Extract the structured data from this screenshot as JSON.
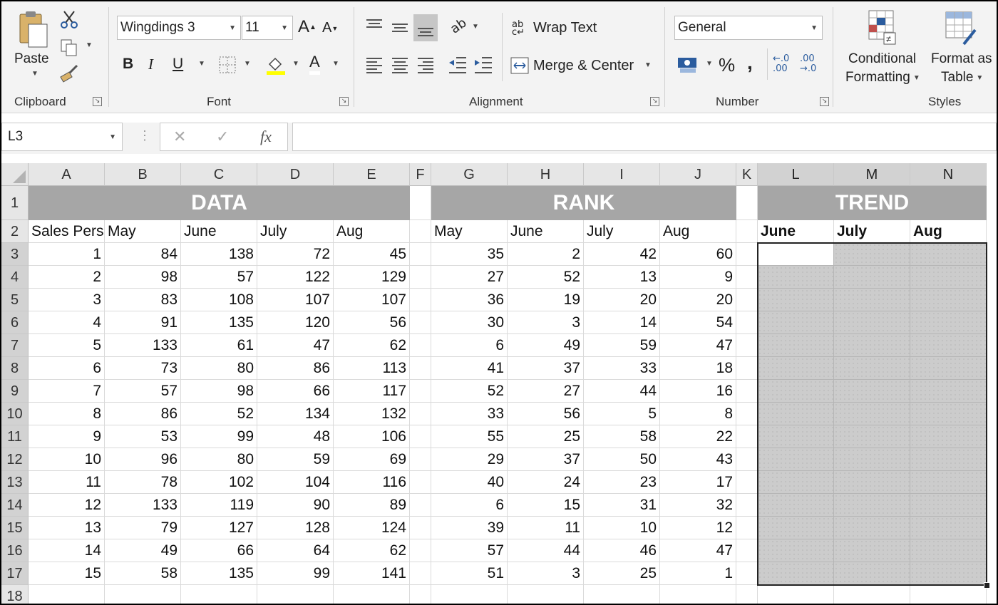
{
  "ribbon": {
    "clipboard": {
      "label": "Clipboard",
      "paste": "Paste"
    },
    "font": {
      "label": "Font",
      "font_name": "Wingdings 3",
      "font_size": "11",
      "bold": "B",
      "italic": "I",
      "underline": "U",
      "grow": "A",
      "shrink": "A",
      "font_color": "A"
    },
    "alignment": {
      "label": "Alignment",
      "wrap_text": "Wrap Text",
      "merge_center": "Merge & Center",
      "orientation_glyph": "ab"
    },
    "number": {
      "label": "Number",
      "format": "General",
      "percent": "%",
      "comma": ",",
      "inc_decimal": "←.0\n.00",
      "dec_decimal": ".00\n→.0"
    },
    "styles": {
      "label": "Styles",
      "conditional_line1": "Conditional",
      "conditional_line2": "Formatting",
      "format_table_line1": "Format as",
      "format_table_line2": "Table"
    }
  },
  "formula_bar": {
    "name_box": "L3",
    "cancel": "✕",
    "enter": "✓",
    "fx": "fx",
    "formula": ""
  },
  "columns": [
    "A",
    "B",
    "C",
    "D",
    "E",
    "F",
    "G",
    "H",
    "I",
    "J",
    "K",
    "L",
    "M",
    "N"
  ],
  "rows": [
    "1",
    "2",
    "3",
    "4",
    "5",
    "6",
    "7",
    "8",
    "9",
    "10",
    "11",
    "12",
    "13",
    "14",
    "15",
    "16",
    "17",
    "18"
  ],
  "banners": {
    "data": "DATA",
    "rank": "RANK",
    "trend": "TREND"
  },
  "headers": {
    "data": [
      "Sales Person",
      "May",
      "June",
      "July",
      "Aug"
    ],
    "rank": [
      "May",
      "June",
      "July",
      "Aug"
    ],
    "trend": [
      "June",
      "July",
      "Aug"
    ]
  },
  "data_rows": [
    [
      1,
      84,
      138,
      72,
      45
    ],
    [
      2,
      98,
      57,
      122,
      129
    ],
    [
      3,
      83,
      108,
      107,
      107
    ],
    [
      4,
      91,
      135,
      120,
      56
    ],
    [
      5,
      133,
      61,
      47,
      62
    ],
    [
      6,
      73,
      80,
      86,
      113
    ],
    [
      7,
      57,
      98,
      66,
      117
    ],
    [
      8,
      86,
      52,
      134,
      132
    ],
    [
      9,
      53,
      99,
      48,
      106
    ],
    [
      10,
      96,
      80,
      59,
      69
    ],
    [
      11,
      78,
      102,
      104,
      116
    ],
    [
      12,
      133,
      119,
      90,
      89
    ],
    [
      13,
      79,
      127,
      128,
      124
    ],
    [
      14,
      49,
      66,
      64,
      62
    ],
    [
      15,
      58,
      135,
      99,
      141
    ]
  ],
  "rank_rows": [
    [
      35,
      2,
      42,
      60
    ],
    [
      27,
      52,
      13,
      9
    ],
    [
      36,
      19,
      20,
      20
    ],
    [
      30,
      3,
      14,
      54
    ],
    [
      6,
      49,
      59,
      47
    ],
    [
      41,
      37,
      33,
      18
    ],
    [
      52,
      27,
      44,
      16
    ],
    [
      33,
      56,
      5,
      8
    ],
    [
      55,
      25,
      58,
      22
    ],
    [
      29,
      37,
      50,
      43
    ],
    [
      40,
      24,
      23,
      17
    ],
    [
      6,
      15,
      31,
      32
    ],
    [
      39,
      11,
      10,
      12
    ],
    [
      57,
      44,
      46,
      47
    ],
    [
      51,
      3,
      25,
      1
    ]
  ],
  "colors": {
    "banner": "#a6a6a6",
    "selection_fill": "#cccccc",
    "header_bg": "#e6e6e6"
  }
}
